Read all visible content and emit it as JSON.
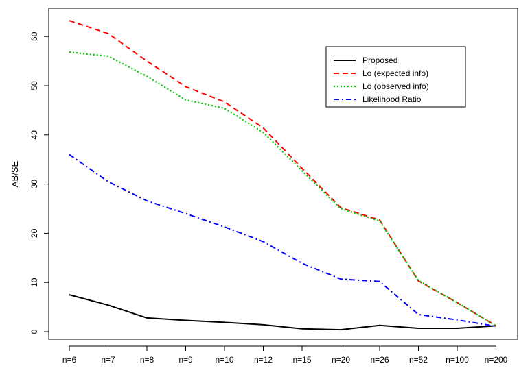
{
  "chart_data": {
    "type": "line",
    "title": "",
    "xlabel": "",
    "ylabel": "AB/SE",
    "categories": [
      "n=6",
      "n=7",
      "n=8",
      "n=9",
      "n=10",
      "n=12",
      "n=15",
      "n=20",
      "n=26",
      "n=52",
      "n=100",
      "n=200"
    ],
    "ylim": [
      -2,
      65
    ],
    "yticks": [
      0,
      10,
      20,
      30,
      40,
      50,
      60
    ],
    "grid": false,
    "legend_position": "top-right",
    "series": [
      {
        "name": "Proposed",
        "color": "#000000",
        "dash": "solid",
        "values": [
          7.5,
          5.4,
          2.8,
          2.3,
          1.9,
          1.4,
          0.6,
          0.4,
          1.3,
          0.7,
          0.7,
          1.2
        ]
      },
      {
        "name": "Lo (expected info)",
        "color": "#ff0000",
        "dash": "dashed",
        "values": [
          63.2,
          60.6,
          55.0,
          49.8,
          46.7,
          41.4,
          33.2,
          25.2,
          22.7,
          10.3,
          5.9,
          1.2
        ]
      },
      {
        "name": "Lo (observed info)",
        "color": "#00cc00",
        "dash": "dotted",
        "values": [
          56.8,
          56.0,
          51.9,
          47.1,
          45.4,
          40.5,
          32.7,
          25.0,
          22.5,
          10.4,
          5.9,
          1.2
        ]
      },
      {
        "name": "Likelihood Ratio",
        "color": "#0000ff",
        "dash": "dashdot",
        "values": [
          36.0,
          30.5,
          26.6,
          24.0,
          21.3,
          18.3,
          13.9,
          10.7,
          10.2,
          3.5,
          2.4,
          1.1
        ]
      }
    ]
  }
}
